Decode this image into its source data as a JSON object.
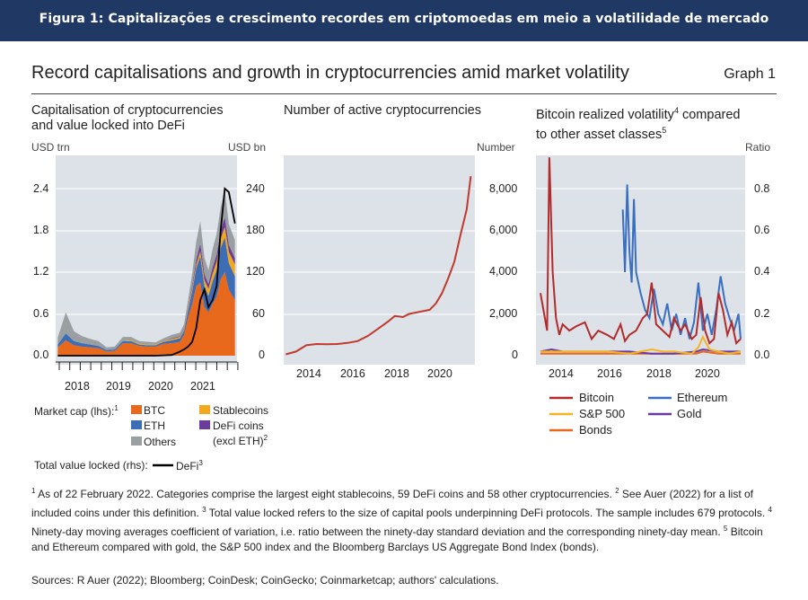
{
  "banner": "Figura 1: Capitalizações e crescimento recordes em criptomoedas em meio a volatilidade de mercado",
  "title": "Record capitalisations and growth in cryptocurrencies amid market volatility",
  "graph_label": "Graph 1",
  "colors": {
    "btc": "#e8681c",
    "eth": "#3d6db5",
    "stablecoins": "#f2a81d",
    "defi_coins": "#6a3d9a",
    "others": "#9aa0a2",
    "defi_tvl": "#000000",
    "active": "#c0392b",
    "bitcoin_vol": "#b22b2b",
    "ethereum_vol": "#3a6fbf",
    "sp500": "#f5b325",
    "gold": "#6a3aa0",
    "bonds": "#e8681c",
    "plot_bg": "#dde1e8"
  },
  "panels": {
    "left": {
      "title_lines": [
        "Capitalisation of cryptocurrencies",
        "and value locked into DeFi"
      ],
      "unit_left": "USD trn",
      "unit_right": "USD bn",
      "legend_prefix": "Market cap (lhs):",
      "legend_prefix_sup": "1",
      "legend_items": [
        "BTC",
        "ETH",
        "Others",
        "Stablecoins",
        "DeFi coins"
      ],
      "defi_coins_note": "(excl ETH)",
      "defi_coins_note_sup": "2",
      "tvl_prefix": "Total value locked (rhs):",
      "tvl_label": "DeFi",
      "tvl_label_sup": "3"
    },
    "middle": {
      "title": "Number of active cryptocurrencies",
      "unit": "Number"
    },
    "right": {
      "title_a": "Bitcoin realized volatility",
      "title_a_sup": "4",
      "title_b": " compared",
      "title_line2": "to other asset classes",
      "title_line2_sup": "5",
      "unit": "Ratio",
      "legend_items": [
        "Bitcoin",
        "Ethereum",
        "S&P 500",
        "Gold",
        "Bonds"
      ]
    }
  },
  "chart_data": [
    {
      "type": "area",
      "title": "Capitalisation of cryptocurrencies and value locked into DeFi",
      "y_left_label": "USD trn",
      "y_right_label": "USD bn",
      "y_left_ticks": [
        "0.0",
        "0.6",
        "1.2",
        "1.8",
        "2.4"
      ],
      "y_right_ticks": [
        "0",
        "60",
        "120",
        "180",
        "240"
      ],
      "x_ticks": [
        "2018",
        "2019",
        "2020",
        "2021"
      ],
      "ylim_left": [
        0,
        2.9
      ],
      "ylim_right": [
        0,
        290
      ],
      "x": [
        2017.8,
        2018.0,
        2018.2,
        2018.4,
        2018.6,
        2018.8,
        2019.0,
        2019.2,
        2019.4,
        2019.6,
        2019.8,
        2020.0,
        2020.2,
        2020.4,
        2020.6,
        2020.8,
        2020.9,
        2021.0,
        2021.1,
        2021.2,
        2021.3,
        2021.4,
        2021.5,
        2021.6,
        2021.7,
        2021.8,
        2021.9,
        2022.0,
        2022.15
      ],
      "series": [
        {
          "name": "BTC",
          "values": [
            0.12,
            0.22,
            0.15,
            0.13,
            0.12,
            0.11,
            0.06,
            0.07,
            0.18,
            0.18,
            0.14,
            0.13,
            0.13,
            0.17,
            0.18,
            0.2,
            0.3,
            0.55,
            0.75,
            1.0,
            1.05,
            0.7,
            0.62,
            0.75,
            0.85,
            1.1,
            1.2,
            0.95,
            0.8
          ]
        },
        {
          "name": "ETH",
          "values": [
            0.04,
            0.1,
            0.06,
            0.05,
            0.04,
            0.03,
            0.02,
            0.02,
            0.03,
            0.03,
            0.02,
            0.02,
            0.02,
            0.03,
            0.04,
            0.05,
            0.06,
            0.1,
            0.18,
            0.26,
            0.38,
            0.3,
            0.24,
            0.32,
            0.38,
            0.45,
            0.5,
            0.38,
            0.34
          ]
        },
        {
          "name": "Stablecoins",
          "values": [
            0.0,
            0.0,
            0.0,
            0.0,
            0.0,
            0.0,
            0.0,
            0.0,
            0.0,
            0.01,
            0.01,
            0.01,
            0.01,
            0.01,
            0.02,
            0.02,
            0.02,
            0.03,
            0.04,
            0.05,
            0.07,
            0.09,
            0.1,
            0.11,
            0.12,
            0.13,
            0.15,
            0.16,
            0.17
          ]
        },
        {
          "name": "DeFi coins",
          "values": [
            0.0,
            0.0,
            0.0,
            0.0,
            0.0,
            0.0,
            0.0,
            0.0,
            0.0,
            0.0,
            0.0,
            0.0,
            0.0,
            0.0,
            0.01,
            0.01,
            0.01,
            0.02,
            0.04,
            0.07,
            0.11,
            0.08,
            0.07,
            0.09,
            0.1,
            0.12,
            0.14,
            0.1,
            0.09
          ]
        },
        {
          "name": "Others",
          "values": [
            0.1,
            0.3,
            0.14,
            0.1,
            0.08,
            0.07,
            0.04,
            0.04,
            0.06,
            0.05,
            0.04,
            0.04,
            0.03,
            0.04,
            0.05,
            0.05,
            0.06,
            0.1,
            0.17,
            0.26,
            0.32,
            0.24,
            0.2,
            0.26,
            0.3,
            0.33,
            0.38,
            0.3,
            0.26
          ]
        },
        {
          "name": "DeFi",
          "axis": "rhs",
          "values": [
            0,
            0,
            0,
            0,
            0,
            0,
            0,
            0,
            0,
            0,
            0,
            0,
            0,
            0.5,
            1,
            6,
            9,
            13,
            20,
            40,
            80,
            95,
            70,
            80,
            100,
            180,
            240,
            235,
            190
          ]
        }
      ]
    },
    {
      "type": "line",
      "title": "Number of active cryptocurrencies",
      "ylabel": "Number",
      "y_ticks": [
        "0",
        "2,000",
        "4,000",
        "6,000",
        "8,000"
      ],
      "x_ticks": [
        "2014",
        "2016",
        "2018",
        "2020"
      ],
      "ylim": [
        0,
        9500
      ],
      "x": [
        2013.0,
        2013.5,
        2014.0,
        2014.5,
        2015.0,
        2015.5,
        2016.0,
        2016.5,
        2017.0,
        2017.5,
        2018.0,
        2018.3,
        2018.7,
        2019.0,
        2019.5,
        2020.0,
        2020.3,
        2020.6,
        2020.9,
        2021.2,
        2021.5,
        2021.8,
        2022.0
      ],
      "values": [
        66,
        200,
        500,
        560,
        550,
        560,
        610,
        700,
        950,
        1300,
        1650,
        1900,
        1850,
        2000,
        2100,
        2200,
        2500,
        3000,
        3700,
        4500,
        5800,
        7000,
        8600
      ]
    },
    {
      "type": "line",
      "title": "Bitcoin realized volatility compared to other asset classes",
      "ylabel": "Ratio",
      "y_ticks": [
        "0.0",
        "0.2",
        "0.4",
        "0.6",
        "0.8"
      ],
      "x_ticks": [
        "2014",
        "2016",
        "2018",
        "2020"
      ],
      "ylim": [
        0,
        0.95
      ],
      "series": [
        {
          "name": "Bitcoin",
          "x": [
            2013.0,
            2013.3,
            2013.4,
            2013.55,
            2013.7,
            2013.85,
            2014.0,
            2014.3,
            2014.6,
            2015.0,
            2015.3,
            2015.6,
            2016.0,
            2016.3,
            2016.6,
            2016.8,
            2017.0,
            2017.3,
            2017.6,
            2017.8,
            2018.0,
            2018.2,
            2018.5,
            2018.8,
            2019.0,
            2019.3,
            2019.5,
            2019.8,
            2020.0,
            2020.2,
            2020.4,
            2020.6,
            2020.8,
            2021.0,
            2021.2,
            2021.4,
            2021.6,
            2021.8,
            2022.0
          ],
          "values": [
            0.3,
            0.12,
            0.95,
            0.4,
            0.18,
            0.1,
            0.15,
            0.12,
            0.14,
            0.16,
            0.08,
            0.12,
            0.1,
            0.08,
            0.15,
            0.07,
            0.1,
            0.12,
            0.18,
            0.2,
            0.35,
            0.15,
            0.12,
            0.09,
            0.18,
            0.12,
            0.15,
            0.08,
            0.1,
            0.28,
            0.12,
            0.06,
            0.08,
            0.3,
            0.22,
            0.1,
            0.16,
            0.06,
            0.08
          ]
        },
        {
          "name": "Ethereum",
          "x": [
            2016.7,
            2016.8,
            2016.9,
            2017.0,
            2017.1,
            2017.2,
            2017.3,
            2017.5,
            2017.7,
            2017.9,
            2018.1,
            2018.3,
            2018.5,
            2018.7,
            2018.9,
            2019.1,
            2019.3,
            2019.5,
            2019.7,
            2019.9,
            2020.1,
            2020.3,
            2020.5,
            2020.7,
            2020.9,
            2021.1,
            2021.3,
            2021.5,
            2021.7,
            2021.9,
            2022.0
          ],
          "values": [
            0.7,
            0.4,
            0.82,
            0.5,
            0.35,
            0.75,
            0.4,
            0.3,
            0.22,
            0.18,
            0.32,
            0.2,
            0.15,
            0.25,
            0.12,
            0.2,
            0.1,
            0.18,
            0.08,
            0.16,
            0.35,
            0.12,
            0.2,
            0.1,
            0.22,
            0.38,
            0.25,
            0.18,
            0.12,
            0.2,
            0.08
          ]
        },
        {
          "name": "S&P 500",
          "x": [
            2013.0,
            2014.0,
            2015.0,
            2016.0,
            2017.0,
            2018.0,
            2018.5,
            2019.0,
            2019.8,
            2020.1,
            2020.3,
            2020.6,
            2021.0,
            2021.5,
            2022.0
          ],
          "values": [
            0.02,
            0.02,
            0.02,
            0.02,
            0.01,
            0.03,
            0.02,
            0.02,
            0.01,
            0.04,
            0.09,
            0.03,
            0.02,
            0.01,
            0.02
          ]
        },
        {
          "name": "Gold",
          "x": [
            2013.0,
            2013.5,
            2014.0,
            2015.0,
            2016.0,
            2017.0,
            2018.0,
            2019.0,
            2020.0,
            2020.3,
            2021.0,
            2022.0
          ],
          "values": [
            0.02,
            0.03,
            0.02,
            0.02,
            0.02,
            0.02,
            0.01,
            0.01,
            0.02,
            0.03,
            0.02,
            0.02
          ]
        },
        {
          "name": "Bonds",
          "x": [
            2013.0,
            2014.0,
            2015.0,
            2016.0,
            2017.0,
            2018.0,
            2019.0,
            2020.0,
            2020.3,
            2021.0,
            2022.0
          ],
          "values": [
            0.01,
            0.01,
            0.01,
            0.01,
            0.01,
            0.01,
            0.01,
            0.01,
            0.02,
            0.01,
            0.01
          ]
        }
      ]
    }
  ],
  "footnotes": {
    "f1_sup": "1",
    "f1": " As of 22 February 2022. Categories comprise the largest eight stablecoins, 59 DeFi coins and 58 other cryptocurrencies.  ",
    "f2_sup": "2",
    "f2": " See Auer (2022) for a list of included coins under this definition.  ",
    "f3_sup": "3",
    "f3": " Total value locked refers to the size of capital pools underpinning DeFi protocols. The sample includes 679 protocols.  ",
    "f4_sup": "4",
    "f4": " Ninety-day moving averages coefficient of variation, i.e. ratio between the ninety-day standard deviation and the corresponding ninety-day mean.  ",
    "f5_sup": "5",
    "f5": " Bitcoin and Ethereum compared with gold, the S&P 500 index and the Bloomberg Barclays US Aggregate Bond Index (bonds).",
    "sources": "Sources: R Auer (2022); Bloomberg; CoinDesk; CoinGecko; Coinmarketcap; authors' calculations."
  }
}
